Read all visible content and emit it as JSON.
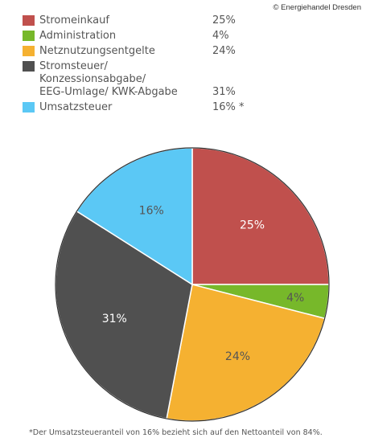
{
  "copyright": "© Energiehandel Dresden",
  "footnote": "*Der Umsatzsteueranteil von 16% bezieht sich auf den Nettoanteil von 84%.",
  "chart_data": {
    "type": "pie",
    "start_angle_deg": 0,
    "direction": "clockwise",
    "legend_placement": "top-left",
    "slices": [
      {
        "label": "Stromeinkauf",
        "label_lines": [
          "Stromeinkauf"
        ],
        "value": 25,
        "legend_value": "25%",
        "slice_label": "25%",
        "color": "#c0504d"
      },
      {
        "label": "Administration",
        "label_lines": [
          "Administration"
        ],
        "value": 4,
        "legend_value": "4%",
        "slice_label": "4%",
        "color": "#77b82a"
      },
      {
        "label": "Netznutzungsentgelte",
        "label_lines": [
          "Netznutzungsentgelte"
        ],
        "value": 24,
        "legend_value": "24%",
        "slice_label": "24%",
        "color": "#f5b131"
      },
      {
        "label": "Stromsteuer/ Konzessionsabgabe/ EEG-Umlage/ KWK-Abgabe",
        "label_lines": [
          "Stromsteuer/",
          "Konzessionsabgabe/",
          "EEG-Umlage/ KWK-Abgabe"
        ],
        "value": 31,
        "legend_value": "31%",
        "slice_label": "31%",
        "color": "#505050"
      },
      {
        "label": "Umsatzsteuer",
        "label_lines": [
          "Umsatzsteuer"
        ],
        "value": 16,
        "legend_value": "16% *",
        "slice_label": "16%",
        "color": "#5bc8f5"
      }
    ]
  }
}
